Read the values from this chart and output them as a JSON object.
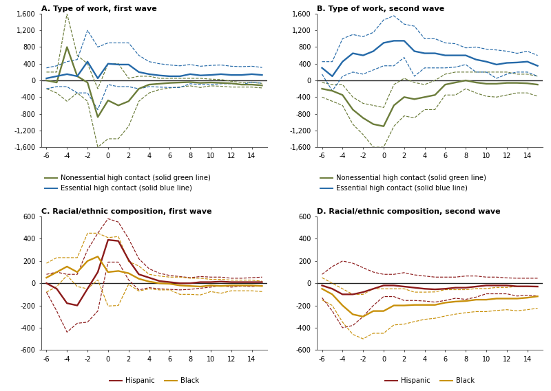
{
  "x": [
    -6,
    -5,
    -4,
    -3,
    -2,
    -1,
    0,
    1,
    2,
    3,
    4,
    5,
    6,
    7,
    8,
    9,
    10,
    11,
    12,
    13,
    14,
    15
  ],
  "panel_A": {
    "title": "A. Type of work, first wave",
    "ylim": [
      -1600,
      1600
    ],
    "yticks": [
      -1600,
      -1200,
      -800,
      -400,
      0,
      400,
      800,
      1200,
      1600
    ],
    "green_solid": [
      0,
      -50,
      800,
      100,
      -50,
      -880,
      -480,
      -600,
      -500,
      -200,
      -100,
      -80,
      -60,
      -50,
      -40,
      -60,
      -50,
      -60,
      -70,
      -100,
      -100,
      -120
    ],
    "green_upper": [
      200,
      200,
      1600,
      600,
      400,
      -200,
      400,
      400,
      50,
      100,
      100,
      50,
      50,
      50,
      50,
      50,
      30,
      20,
      -20,
      -50,
      -50,
      -70
    ],
    "green_lower": [
      -200,
      -300,
      -500,
      -300,
      -500,
      -1600,
      -1400,
      -1400,
      -1100,
      -500,
      -300,
      -220,
      -180,
      -160,
      -130,
      -170,
      -130,
      -140,
      -160,
      -160,
      -160,
      -180
    ],
    "blue_solid": [
      50,
      100,
      150,
      100,
      450,
      50,
      400,
      380,
      380,
      200,
      150,
      120,
      100,
      100,
      150,
      120,
      130,
      150,
      130,
      130,
      150,
      130
    ],
    "blue_upper": [
      300,
      350,
      450,
      500,
      1200,
      800,
      900,
      900,
      900,
      600,
      450,
      400,
      370,
      350,
      380,
      340,
      360,
      370,
      340,
      330,
      340,
      310
    ],
    "blue_lower": [
      -200,
      -150,
      -150,
      -300,
      -300,
      -700,
      -100,
      -150,
      -150,
      -200,
      -150,
      -160,
      -170,
      -170,
      -80,
      -100,
      -100,
      -80,
      -80,
      -100,
      -40,
      -70
    ]
  },
  "panel_B": {
    "title": "B. Type of work, second wave",
    "ylim": [
      -1600,
      1600
    ],
    "yticks": [
      -1600,
      -1200,
      -800,
      -400,
      0,
      400,
      800,
      1200,
      1600
    ],
    "green_solid": [
      -200,
      -250,
      -350,
      -700,
      -900,
      -1050,
      -1100,
      -600,
      -400,
      -450,
      -400,
      -350,
      -100,
      -50,
      0,
      -50,
      -80,
      -80,
      -60,
      -60,
      -70,
      -100
    ],
    "green_upper": [
      -50,
      -100,
      -100,
      -400,
      -550,
      -600,
      -650,
      -100,
      50,
      -50,
      -100,
      0,
      150,
      200,
      200,
      200,
      200,
      200,
      200,
      150,
      150,
      100
    ],
    "green_lower": [
      -400,
      -500,
      -600,
      -1050,
      -1300,
      -1600,
      -1600,
      -1100,
      -850,
      -900,
      -700,
      -700,
      -350,
      -350,
      -200,
      -300,
      -380,
      -400,
      -350,
      -300,
      -300,
      -380
    ],
    "blue_solid": [
      300,
      100,
      450,
      650,
      600,
      700,
      900,
      950,
      950,
      700,
      650,
      650,
      600,
      600,
      600,
      500,
      450,
      380,
      420,
      430,
      450,
      350
    ],
    "blue_upper": [
      450,
      450,
      1000,
      1100,
      1050,
      1150,
      1450,
      1550,
      1350,
      1300,
      1000,
      1000,
      900,
      880,
      780,
      800,
      750,
      730,
      700,
      650,
      700,
      600
    ],
    "blue_lower": [
      150,
      -250,
      100,
      200,
      150,
      250,
      350,
      350,
      550,
      100,
      300,
      300,
      300,
      320,
      380,
      200,
      200,
      50,
      150,
      200,
      200,
      100
    ]
  },
  "panel_C": {
    "title": "C. Racial/ethnic composition, first wave",
    "ylim": [
      -600,
      600
    ],
    "yticks": [
      -600,
      -400,
      -200,
      0,
      200,
      400,
      600
    ],
    "red_solid": [
      0,
      -50,
      -180,
      -200,
      -50,
      100,
      390,
      380,
      210,
      80,
      50,
      20,
      10,
      0,
      0,
      10,
      10,
      15,
      10,
      10,
      10,
      10
    ],
    "red_upper": [
      80,
      100,
      80,
      80,
      300,
      450,
      580,
      550,
      400,
      220,
      130,
      90,
      70,
      60,
      50,
      60,
      55,
      55,
      45,
      45,
      50,
      55
    ],
    "red_lower": [
      -80,
      -250,
      -440,
      -360,
      -350,
      -250,
      190,
      190,
      30,
      -60,
      -40,
      -50,
      -55,
      -60,
      -55,
      -45,
      -35,
      -20,
      -35,
      -25,
      -30,
      -20
    ],
    "gold_solid": [
      50,
      100,
      150,
      100,
      200,
      240,
      100,
      110,
      90,
      40,
      15,
      0,
      -5,
      -20,
      -25,
      -30,
      -20,
      -25,
      -20,
      -20,
      -20,
      -25
    ],
    "gold_upper": [
      180,
      230,
      230,
      230,
      450,
      450,
      410,
      420,
      195,
      155,
      80,
      65,
      55,
      55,
      45,
      45,
      35,
      35,
      28,
      28,
      28,
      18
    ],
    "gold_lower": [
      -80,
      -30,
      70,
      -30,
      -50,
      30,
      -205,
      -200,
      -10,
      -70,
      -50,
      -60,
      -60,
      -100,
      -100,
      -105,
      -75,
      -90,
      -68,
      -68,
      -68,
      -75
    ]
  },
  "panel_D": {
    "title": "D. Racial/ethnic composition, second wave",
    "ylim": [
      -600,
      600
    ],
    "yticks": [
      -600,
      -400,
      -200,
      0,
      200,
      400,
      600
    ],
    "red_solid": [
      -20,
      -50,
      -100,
      -100,
      -80,
      -50,
      -20,
      -20,
      -30,
      -40,
      -50,
      -55,
      -50,
      -40,
      -40,
      -30,
      -20,
      -20,
      -20,
      -28,
      -28,
      -30
    ],
    "red_upper": [
      80,
      150,
      200,
      180,
      140,
      100,
      80,
      80,
      95,
      75,
      65,
      55,
      55,
      55,
      65,
      65,
      55,
      55,
      48,
      45,
      45,
      45
    ],
    "red_lower": [
      -130,
      -250,
      -400,
      -380,
      -300,
      -200,
      -120,
      -120,
      -155,
      -155,
      -160,
      -170,
      -155,
      -135,
      -145,
      -125,
      -95,
      -95,
      -95,
      -115,
      -108,
      -115
    ],
    "gold_solid": [
      -50,
      -100,
      -200,
      -280,
      -300,
      -250,
      -250,
      -200,
      -200,
      -195,
      -195,
      -195,
      -175,
      -165,
      -160,
      -148,
      -148,
      -138,
      -138,
      -138,
      -130,
      -118
    ],
    "gold_upper": [
      50,
      0,
      -50,
      -100,
      -100,
      -50,
      -50,
      -50,
      -50,
      -80,
      -80,
      -78,
      -58,
      -58,
      -58,
      -48,
      -48,
      -38,
      -38,
      -28,
      -28,
      -28
    ],
    "gold_lower": [
      -150,
      -200,
      -350,
      -460,
      -500,
      -450,
      -450,
      -375,
      -368,
      -345,
      -325,
      -315,
      -295,
      -278,
      -265,
      -255,
      -255,
      -245,
      -238,
      -248,
      -238,
      -225
    ]
  },
  "colors": {
    "green": "#6b7c3a",
    "blue": "#2469a8",
    "red": "#8b1a1a",
    "gold": "#c8900a",
    "zero_line": "#222222"
  },
  "legend_AB": [
    {
      "label": "Nonessential high contact (solid green line)",
      "color": "#6b7c3a"
    },
    {
      "label": "Essential high contact (solid blue line)",
      "color": "#2469a8"
    }
  ],
  "legend_CD": [
    {
      "label": "Hispanic",
      "color": "#8b1a1a"
    },
    {
      "label": "Black",
      "color": "#c8900a"
    }
  ]
}
